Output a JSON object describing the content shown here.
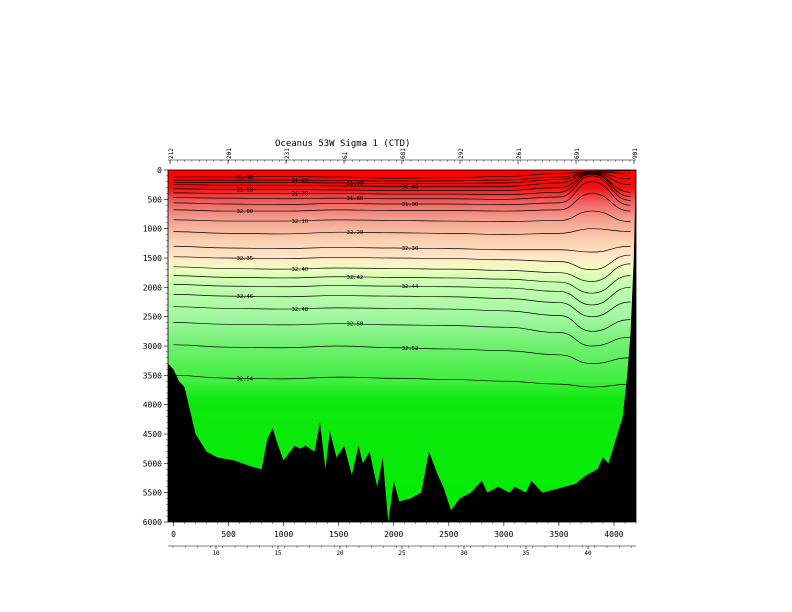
{
  "chart_data": {
    "type": "contour",
    "title": "Oceanus 53W Sigma 1 (CTD)",
    "x_axis": {
      "label": "",
      "range": [
        -50,
        4200
      ],
      "ticks": [
        "0",
        "500",
        "1000",
        "1500",
        "2000",
        "2500",
        "3000",
        "3500",
        "4000"
      ]
    },
    "y_axis": {
      "label": "",
      "range": [
        0,
        6000
      ],
      "inverted": true,
      "ticks": [
        "0",
        "500",
        "1000",
        "1500",
        "2000",
        "2500",
        "3000",
        "3500",
        "4000",
        "4500",
        "5000",
        "5500",
        "6000"
      ]
    },
    "station_ticks": [
      "10",
      "15",
      "20",
      "25",
      "30",
      "35",
      "40"
    ],
    "top_ticks": [
      "212",
      "201",
      "231",
      "61",
      "681",
      "292",
      "261",
      "691",
      "901"
    ],
    "contour_labels": [
      "31.10",
      "31.20",
      "31.30",
      "31.40",
      "31.60",
      "31.70",
      "31.80",
      "31.90",
      "32.00",
      "32.10",
      "32.20",
      "32.30",
      "32.35",
      "32.40",
      "32.42",
      "32.44",
      "32.46",
      "32.48",
      "32.50",
      "32.52",
      "32.54"
    ],
    "colors": {
      "fill_low": "#ee0000",
      "fill_mid": "#ffe0c8",
      "fill_transition": "#e0ffb0",
      "fill_high": "#00ee00",
      "bathymetry": "#000000"
    },
    "contour_lines": [
      {
        "value": "31.10",
        "depth": [
          120,
          120,
          110,
          120,
          140,
          130,
          110,
          60,
          20,
          10
        ]
      },
      {
        "value": "31.20",
        "depth": [
          170,
          175,
          170,
          180,
          190,
          185,
          170,
          120,
          30,
          60
        ]
      },
      {
        "value": "31.30",
        "depth": [
          210,
          215,
          210,
          220,
          235,
          230,
          220,
          160,
          40,
          150
        ]
      },
      {
        "value": "31.40",
        "depth": [
          250,
          260,
          260,
          270,
          280,
          280,
          280,
          220,
          50,
          250
        ]
      },
      {
        "value": "31.60",
        "depth": [
          320,
          330,
          330,
          340,
          350,
          350,
          350,
          300,
          60,
          380
        ]
      },
      {
        "value": "31.70",
        "depth": [
          390,
          400,
          400,
          400,
          410,
          410,
          420,
          380,
          70,
          450
        ]
      },
      {
        "value": "31.80",
        "depth": [
          470,
          480,
          490,
          480,
          490,
          490,
          500,
          460,
          100,
          520
        ]
      },
      {
        "value": "31.90",
        "depth": [
          560,
          580,
          590,
          570,
          580,
          580,
          590,
          560,
          200,
          600
        ]
      },
      {
        "value": "32.00",
        "depth": [
          680,
          700,
          700,
          680,
          690,
          690,
          700,
          680,
          400,
          700
        ]
      },
      {
        "value": "32.10",
        "depth": [
          850,
          870,
          870,
          850,
          860,
          870,
          880,
          860,
          700,
          880
        ]
      },
      {
        "value": "32.20",
        "depth": [
          1050,
          1080,
          1090,
          1060,
          1070,
          1080,
          1100,
          1080,
          1000,
          1050
        ]
      },
      {
        "value": "32.30",
        "depth": [
          1300,
          1330,
          1340,
          1320,
          1330,
          1340,
          1360,
          1360,
          1400,
          1300
        ]
      },
      {
        "value": "32.35",
        "depth": [
          1480,
          1500,
          1510,
          1490,
          1500,
          1510,
          1530,
          1560,
          1700,
          1450
        ]
      },
      {
        "value": "32.40",
        "depth": [
          1650,
          1680,
          1690,
          1670,
          1680,
          1690,
          1710,
          1750,
          1900,
          1600
        ]
      },
      {
        "value": "32.42",
        "depth": [
          1800,
          1830,
          1840,
          1820,
          1830,
          1840,
          1860,
          1910,
          2100,
          1800
        ]
      },
      {
        "value": "32.44",
        "depth": [
          1950,
          1980,
          1990,
          1970,
          1980,
          1990,
          2010,
          2070,
          2300,
          2000
        ]
      },
      {
        "value": "32.46",
        "depth": [
          2120,
          2150,
          2160,
          2140,
          2150,
          2160,
          2190,
          2260,
          2500,
          2250
        ]
      },
      {
        "value": "32.48",
        "depth": [
          2330,
          2360,
          2370,
          2350,
          2360,
          2370,
          2400,
          2480,
          2750,
          2550
        ]
      },
      {
        "value": "32.50",
        "depth": [
          2600,
          2630,
          2640,
          2620,
          2640,
          2650,
          2680,
          2770,
          3000,
          2850
        ]
      },
      {
        "value": "32.52",
        "depth": [
          2980,
          3020,
          3030,
          3000,
          3030,
          3050,
          3080,
          3150,
          3300,
          3200
        ]
      },
      {
        "value": "32.54",
        "depth": [
          3500,
          3550,
          3560,
          3530,
          3550,
          3570,
          3600,
          3650,
          3700,
          3650
        ]
      }
    ],
    "contour_x": [
      0,
      500,
      1000,
      1500,
      2000,
      2500,
      3000,
      3500,
      3800,
      4150
    ]
  }
}
